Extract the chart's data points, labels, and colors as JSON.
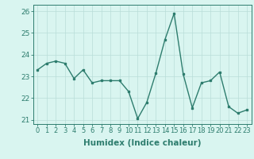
{
  "x": [
    0,
    1,
    2,
    3,
    4,
    5,
    6,
    7,
    8,
    9,
    10,
    11,
    12,
    13,
    14,
    15,
    16,
    17,
    18,
    19,
    20,
    21,
    22,
    23
  ],
  "y": [
    23.3,
    23.6,
    23.7,
    23.6,
    22.9,
    23.3,
    22.7,
    22.8,
    22.8,
    22.8,
    22.3,
    21.05,
    21.8,
    23.15,
    24.7,
    25.9,
    23.1,
    21.55,
    22.7,
    22.8,
    23.2,
    21.6,
    21.3,
    21.45
  ],
  "xlim": [
    -0.5,
    23.5
  ],
  "ylim": [
    20.8,
    26.3
  ],
  "yticks": [
    21,
    22,
    23,
    24,
    25,
    26
  ],
  "xticks": [
    0,
    1,
    2,
    3,
    4,
    5,
    6,
    7,
    8,
    9,
    10,
    11,
    12,
    13,
    14,
    15,
    16,
    17,
    18,
    19,
    20,
    21,
    22,
    23
  ],
  "xlabel": "Humidex (Indice chaleur)",
  "line_color": "#2e7d6e",
  "bg_color": "#d9f5f0",
  "grid_color": "#b8ddd8",
  "axis_color": "#2e7d6e",
  "tick_color": "#2e7d6e",
  "label_color": "#2e7d6e",
  "marker": "s",
  "markersize": 2.0,
  "linewidth": 1.0,
  "xlabel_fontsize": 7.5,
  "tick_fontsize": 6.0,
  "ytick_fontsize": 6.5
}
